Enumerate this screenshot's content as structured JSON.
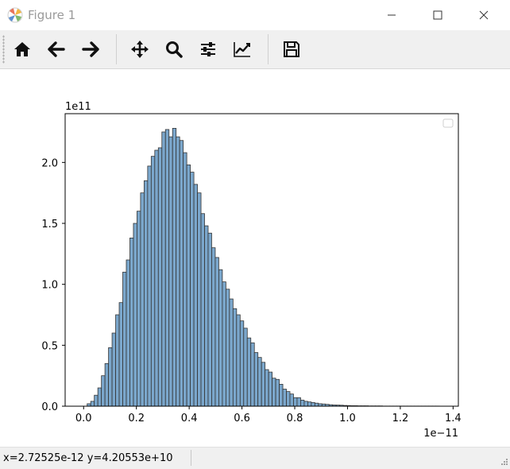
{
  "window": {
    "title": "Figure 1",
    "app_icon": "matplotlib-icon",
    "controls": [
      "minimize-icon",
      "maximize-icon",
      "close-icon"
    ]
  },
  "toolbar": {
    "buttons": [
      {
        "name": "home",
        "icon": "home-icon"
      },
      {
        "name": "back",
        "icon": "arrow-left-icon"
      },
      {
        "name": "forward",
        "icon": "arrow-right-icon"
      },
      {
        "name": "pan",
        "icon": "move-icon"
      },
      {
        "name": "zoom",
        "icon": "magnifier-icon"
      },
      {
        "name": "subplots",
        "icon": "sliders-icon"
      },
      {
        "name": "customize",
        "icon": "line-chart-icon"
      },
      {
        "name": "save",
        "icon": "floppy-icon"
      }
    ]
  },
  "status": {
    "coordinates": "x=2.72525e-12  y=4.20553e+10"
  },
  "chart_data": {
    "type": "bar",
    "subtype": "histogram",
    "bar_color": "#7ba7cc",
    "edge_color": "#333333",
    "x_scale_label": "1e−11",
    "y_scale_label": "1e11",
    "xlim": [
      -0.07,
      1.42
    ],
    "ylim": [
      0,
      2.4
    ],
    "x_ticks": [
      0.0,
      0.2,
      0.4,
      0.6,
      0.8,
      1.0,
      1.2,
      1.4
    ],
    "x_tick_labels": [
      "0.0",
      "0.2",
      "0.4",
      "0.6",
      "0.8",
      "1.0",
      "1.2",
      "1.4"
    ],
    "y_ticks": [
      0.0,
      0.5,
      1.0,
      1.5,
      2.0
    ],
    "y_tick_labels": [
      "0.0",
      "0.5",
      "1.0",
      "1.5",
      "2.0"
    ],
    "legend": "top-right",
    "bin_start": 0.0,
    "bin_width": 0.01348,
    "values": [
      0.0,
      0.02,
      0.04,
      0.09,
      0.15,
      0.25,
      0.35,
      0.48,
      0.6,
      0.75,
      0.85,
      1.1,
      1.2,
      1.38,
      1.5,
      1.6,
      1.75,
      1.85,
      1.97,
      2.05,
      2.1,
      2.12,
      2.25,
      2.27,
      2.21,
      2.28,
      2.21,
      2.18,
      2.08,
      1.98,
      1.92,
      1.82,
      1.75,
      1.58,
      1.48,
      1.42,
      1.3,
      1.22,
      1.12,
      1.02,
      0.96,
      0.88,
      0.8,
      0.75,
      0.7,
      0.64,
      0.56,
      0.52,
      0.44,
      0.4,
      0.36,
      0.3,
      0.28,
      0.23,
      0.22,
      0.18,
      0.14,
      0.12,
      0.1,
      0.07,
      0.07,
      0.05,
      0.04,
      0.035,
      0.03,
      0.025,
      0.02,
      0.018,
      0.015,
      0.012,
      0.01,
      0.009,
      0.008,
      0.006,
      0.005,
      0.004,
      0.004,
      0.003,
      0.003,
      0.003,
      0.002,
      0.002,
      0.002,
      0.002,
      0.001,
      0.001,
      0.001,
      0.001,
      0.001,
      0.001,
      0.001,
      0.001,
      0.001,
      0.001,
      0.001,
      0.001,
      0.001,
      0.001,
      0.001,
      0.001
    ]
  }
}
